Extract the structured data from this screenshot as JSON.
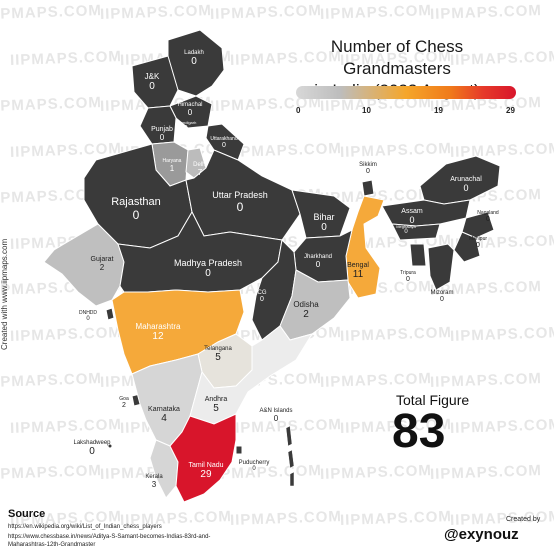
{
  "title_line1": "Number of Chess Grandmasters",
  "title_line2": "in India (2023 August)",
  "legend": {
    "ticks": [
      "0",
      "10",
      "19",
      "29"
    ]
  },
  "watermark": "IIPMAPS.COM",
  "total_label": "Total Figure",
  "total_value": "83",
  "side_credit": "Created with www.iipmaps.com",
  "source_title": "Source",
  "sources": [
    "https://en.wikipedia.org/wiki/List_of_Indian_chess_players",
    "https://www.chessbase.in/news/Aditya-S-Samant-becomes-Indias-83rd-and-",
    "Maharashtras-12th-Grandmaster"
  ],
  "created_by": "Created by",
  "brand": "@exynouz",
  "colors": {
    "zero": "#3a3a3a",
    "low": "#bfbfbf",
    "lighter": "#d6d6d6",
    "lightest": "#ececec",
    "orange": "#f5a93a",
    "red": "#d8152b"
  },
  "regions": [
    {
      "name": "Ladakh",
      "value": "0"
    },
    {
      "name": "J&K",
      "value": "0"
    },
    {
      "name": "Himachal",
      "value": "0"
    },
    {
      "name": "Chandigarh",
      "value": "0"
    },
    {
      "name": "Punjab",
      "value": "0"
    },
    {
      "name": "Uttarakhand",
      "value": "0"
    },
    {
      "name": "Haryana",
      "value": "1"
    },
    {
      "name": "Delhi",
      "value": "7"
    },
    {
      "name": "Rajasthan",
      "value": "0"
    },
    {
      "name": "Uttar Pradesh",
      "value": "0"
    },
    {
      "name": "Sikkim",
      "value": "0"
    },
    {
      "name": "Arunachal",
      "value": "0"
    },
    {
      "name": "Bihar",
      "value": "0"
    },
    {
      "name": "Assam",
      "value": "0"
    },
    {
      "name": "Nagaland",
      "value": "0"
    },
    {
      "name": "Meghalaya",
      "value": "0"
    },
    {
      "name": "Manipur",
      "value": "0"
    },
    {
      "name": "Gujarat",
      "value": "2"
    },
    {
      "name": "Madhya Pradesh",
      "value": "0"
    },
    {
      "name": "Jharkhand",
      "value": "0"
    },
    {
      "name": "Bengal",
      "value": "11"
    },
    {
      "name": "Tripura",
      "value": "0"
    },
    {
      "name": "Mizoram",
      "value": "0"
    },
    {
      "name": "DNHDD",
      "value": "0"
    },
    {
      "name": "CG",
      "value": "0"
    },
    {
      "name": "Odisha",
      "value": "2"
    },
    {
      "name": "Maharashtra",
      "value": "12"
    },
    {
      "name": "Telangana",
      "value": "5"
    },
    {
      "name": "Goa",
      "value": "2"
    },
    {
      "name": "Karnataka",
      "value": "4"
    },
    {
      "name": "Andhra",
      "value": "5"
    },
    {
      "name": "A&N Islands",
      "value": "0"
    },
    {
      "name": "Lakshadweep",
      "value": "0"
    },
    {
      "name": "Tamil Nadu",
      "value": "29"
    },
    {
      "name": "Puducherry",
      "value": "0"
    },
    {
      "name": "Kerala",
      "value": "3"
    }
  ]
}
